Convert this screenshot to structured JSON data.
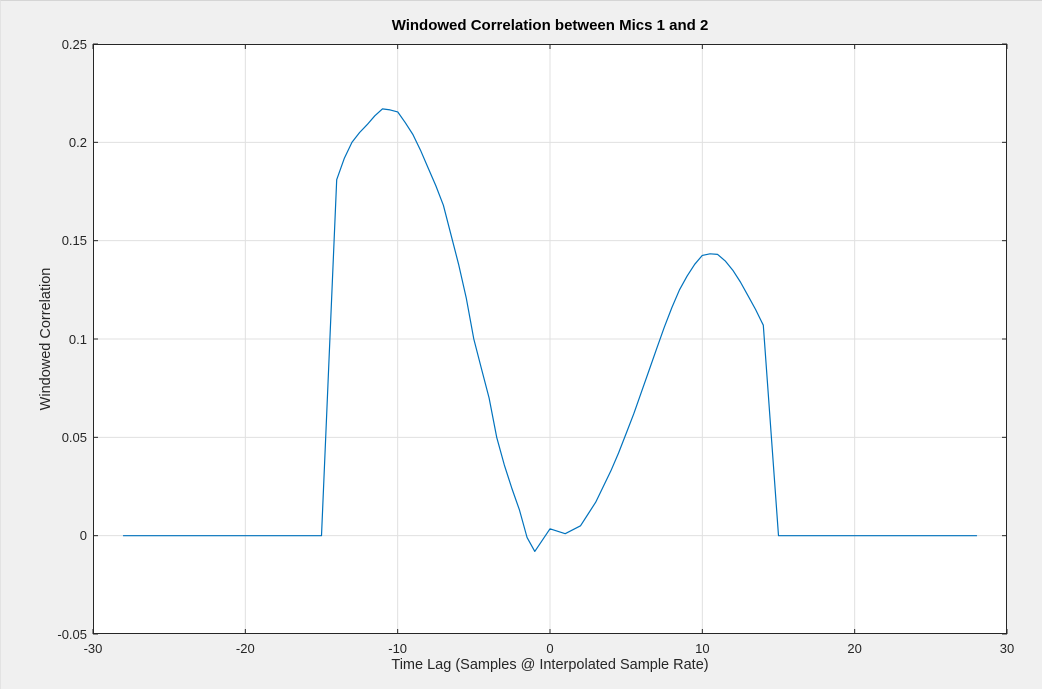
{
  "window": {
    "background_color": "#f0f0f0"
  },
  "chart_data": {
    "type": "line",
    "title": "Windowed Correlation between Mics 1 and 2",
    "xlabel": "Time Lag (Samples @ Interpolated Sample Rate)",
    "ylabel": "Windowed Correlation",
    "xlim": [
      -30,
      30
    ],
    "ylim": [
      -0.05,
      0.25
    ],
    "xticks": [
      -30,
      -20,
      -10,
      0,
      10,
      20,
      30
    ],
    "xticklabels": [
      "-30",
      "-20",
      "-10",
      "0",
      "10",
      "20",
      "30"
    ],
    "yticks": [
      -0.05,
      0,
      0.05,
      0.1,
      0.15,
      0.2,
      0.25
    ],
    "yticklabels": [
      "-0.05",
      "0",
      "0.05",
      "0.1",
      "0.15",
      "0.2",
      "0.25"
    ],
    "grid": true,
    "legend": null,
    "plot_background": "#ffffff",
    "grid_color": "#e0e0e0",
    "axis_color": "#262626",
    "line_color": "#0072BD",
    "series": [
      {
        "name": "windowed-correlation",
        "points": [
          [
            -28,
            0
          ],
          [
            -27,
            0
          ],
          [
            -26,
            0
          ],
          [
            -25,
            0
          ],
          [
            -24,
            0
          ],
          [
            -23,
            0
          ],
          [
            -22,
            0
          ],
          [
            -21,
            0
          ],
          [
            -20,
            0
          ],
          [
            -19,
            0
          ],
          [
            -18,
            0
          ],
          [
            -17,
            0
          ],
          [
            -16,
            0
          ],
          [
            -15,
            0
          ],
          [
            -14,
            0.181
          ],
          [
            -13.5,
            0.192
          ],
          [
            -13,
            0.2
          ],
          [
            -12.5,
            0.205
          ],
          [
            -12,
            0.209
          ],
          [
            -11.5,
            0.2135
          ],
          [
            -11,
            0.217
          ],
          [
            -10.5,
            0.2165
          ],
          [
            -10,
            0.2155
          ],
          [
            -9.5,
            0.21
          ],
          [
            -9,
            0.204
          ],
          [
            -8.5,
            0.196
          ],
          [
            -8,
            0.187
          ],
          [
            -7.5,
            0.178
          ],
          [
            -7,
            0.168
          ],
          [
            -6.5,
            0.153
          ],
          [
            -6,
            0.138
          ],
          [
            -5.5,
            0.121
          ],
          [
            -5,
            0.1
          ],
          [
            -4.5,
            0.085
          ],
          [
            -4,
            0.07
          ],
          [
            -3.5,
            0.05
          ],
          [
            -3,
            0.036
          ],
          [
            -2.5,
            0.024
          ],
          [
            -2,
            0.013
          ],
          [
            -1.5,
            -0.001
          ],
          [
            -1,
            -0.008
          ],
          [
            0,
            0.0035
          ],
          [
            1,
            0.001
          ],
          [
            2,
            0.005
          ],
          [
            2.5,
            0.011
          ],
          [
            3,
            0.017
          ],
          [
            3.5,
            0.025
          ],
          [
            4,
            0.033
          ],
          [
            4.5,
            0.042
          ],
          [
            5,
            0.052
          ],
          [
            5.5,
            0.062
          ],
          [
            6,
            0.073
          ],
          [
            6.5,
            0.084
          ],
          [
            7,
            0.095
          ],
          [
            7.5,
            0.106
          ],
          [
            8,
            0.116
          ],
          [
            8.5,
            0.125
          ],
          [
            9,
            0.132
          ],
          [
            9.5,
            0.138
          ],
          [
            10,
            0.1425
          ],
          [
            10.5,
            0.1433
          ],
          [
            11,
            0.143
          ],
          [
            11.5,
            0.1397
          ],
          [
            12,
            0.135
          ],
          [
            12.5,
            0.129
          ],
          [
            13,
            0.122
          ],
          [
            13.5,
            0.115
          ],
          [
            14,
            0.107
          ],
          [
            15,
            0
          ],
          [
            16,
            0
          ],
          [
            17,
            0
          ],
          [
            18,
            0
          ],
          [
            19,
            0
          ],
          [
            20,
            0
          ],
          [
            21,
            0
          ],
          [
            22,
            0
          ],
          [
            23,
            0
          ],
          [
            24,
            0
          ],
          [
            25,
            0
          ],
          [
            26,
            0
          ],
          [
            27,
            0
          ],
          [
            28,
            0
          ]
        ]
      }
    ]
  }
}
